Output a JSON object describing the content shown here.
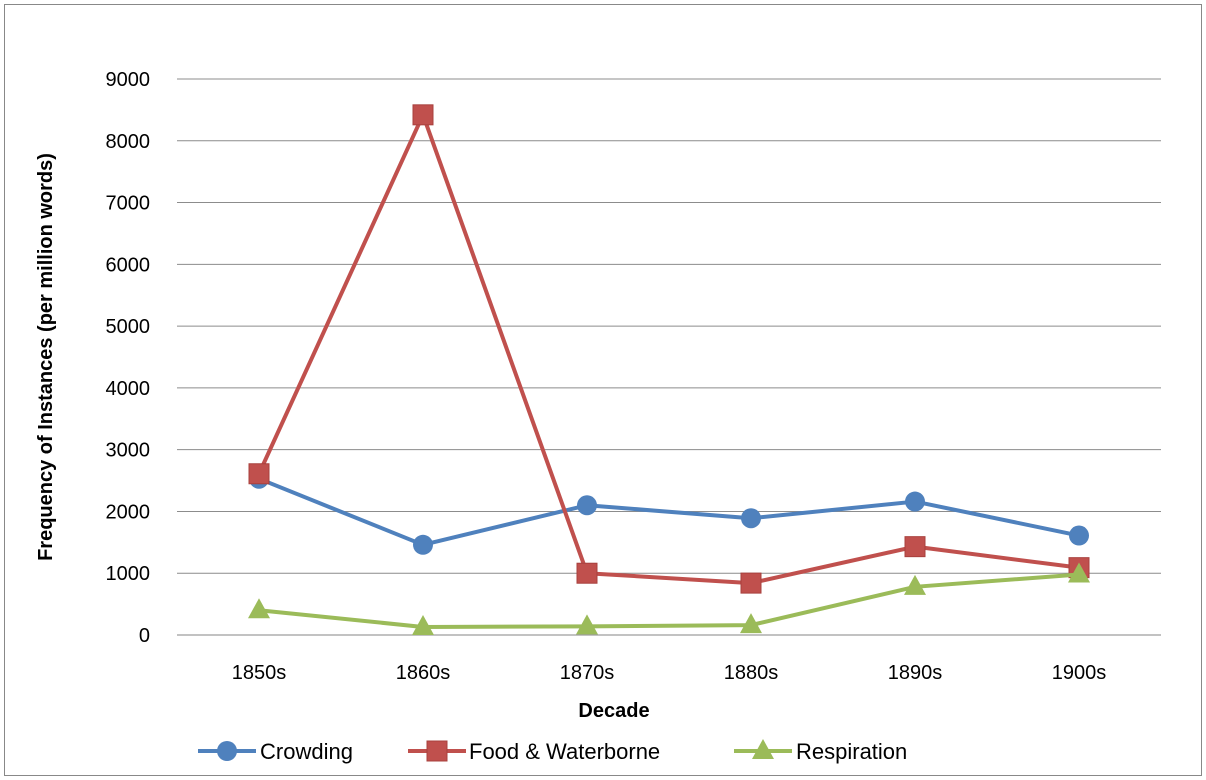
{
  "chart_data": {
    "type": "line",
    "title": "",
    "xlabel": "Decade",
    "ylabel": "Frequency of Instances (per million words)",
    "categories": [
      "1850s",
      "1860s",
      "1870s",
      "1880s",
      "1890s",
      "1900s"
    ],
    "ylim": [
      0,
      9000
    ],
    "yticks": [
      0,
      1000,
      2000,
      3000,
      4000,
      5000,
      6000,
      7000,
      8000,
      9000
    ],
    "grid": true,
    "legend": "bottom",
    "series": [
      {
        "name": "Crowding",
        "color": "#4f81bd",
        "marker": "circle",
        "values": [
          2530,
          1460,
          2100,
          1890,
          2160,
          1610
        ]
      },
      {
        "name": "Food & Waterborne",
        "color": "#c0504d",
        "marker": "square",
        "values": [
          2610,
          8420,
          1000,
          840,
          1430,
          1090
        ]
      },
      {
        "name": "Respiration",
        "color": "#9bbb59",
        "marker": "triangle",
        "values": [
          400,
          130,
          140,
          160,
          780,
          980
        ]
      }
    ]
  }
}
